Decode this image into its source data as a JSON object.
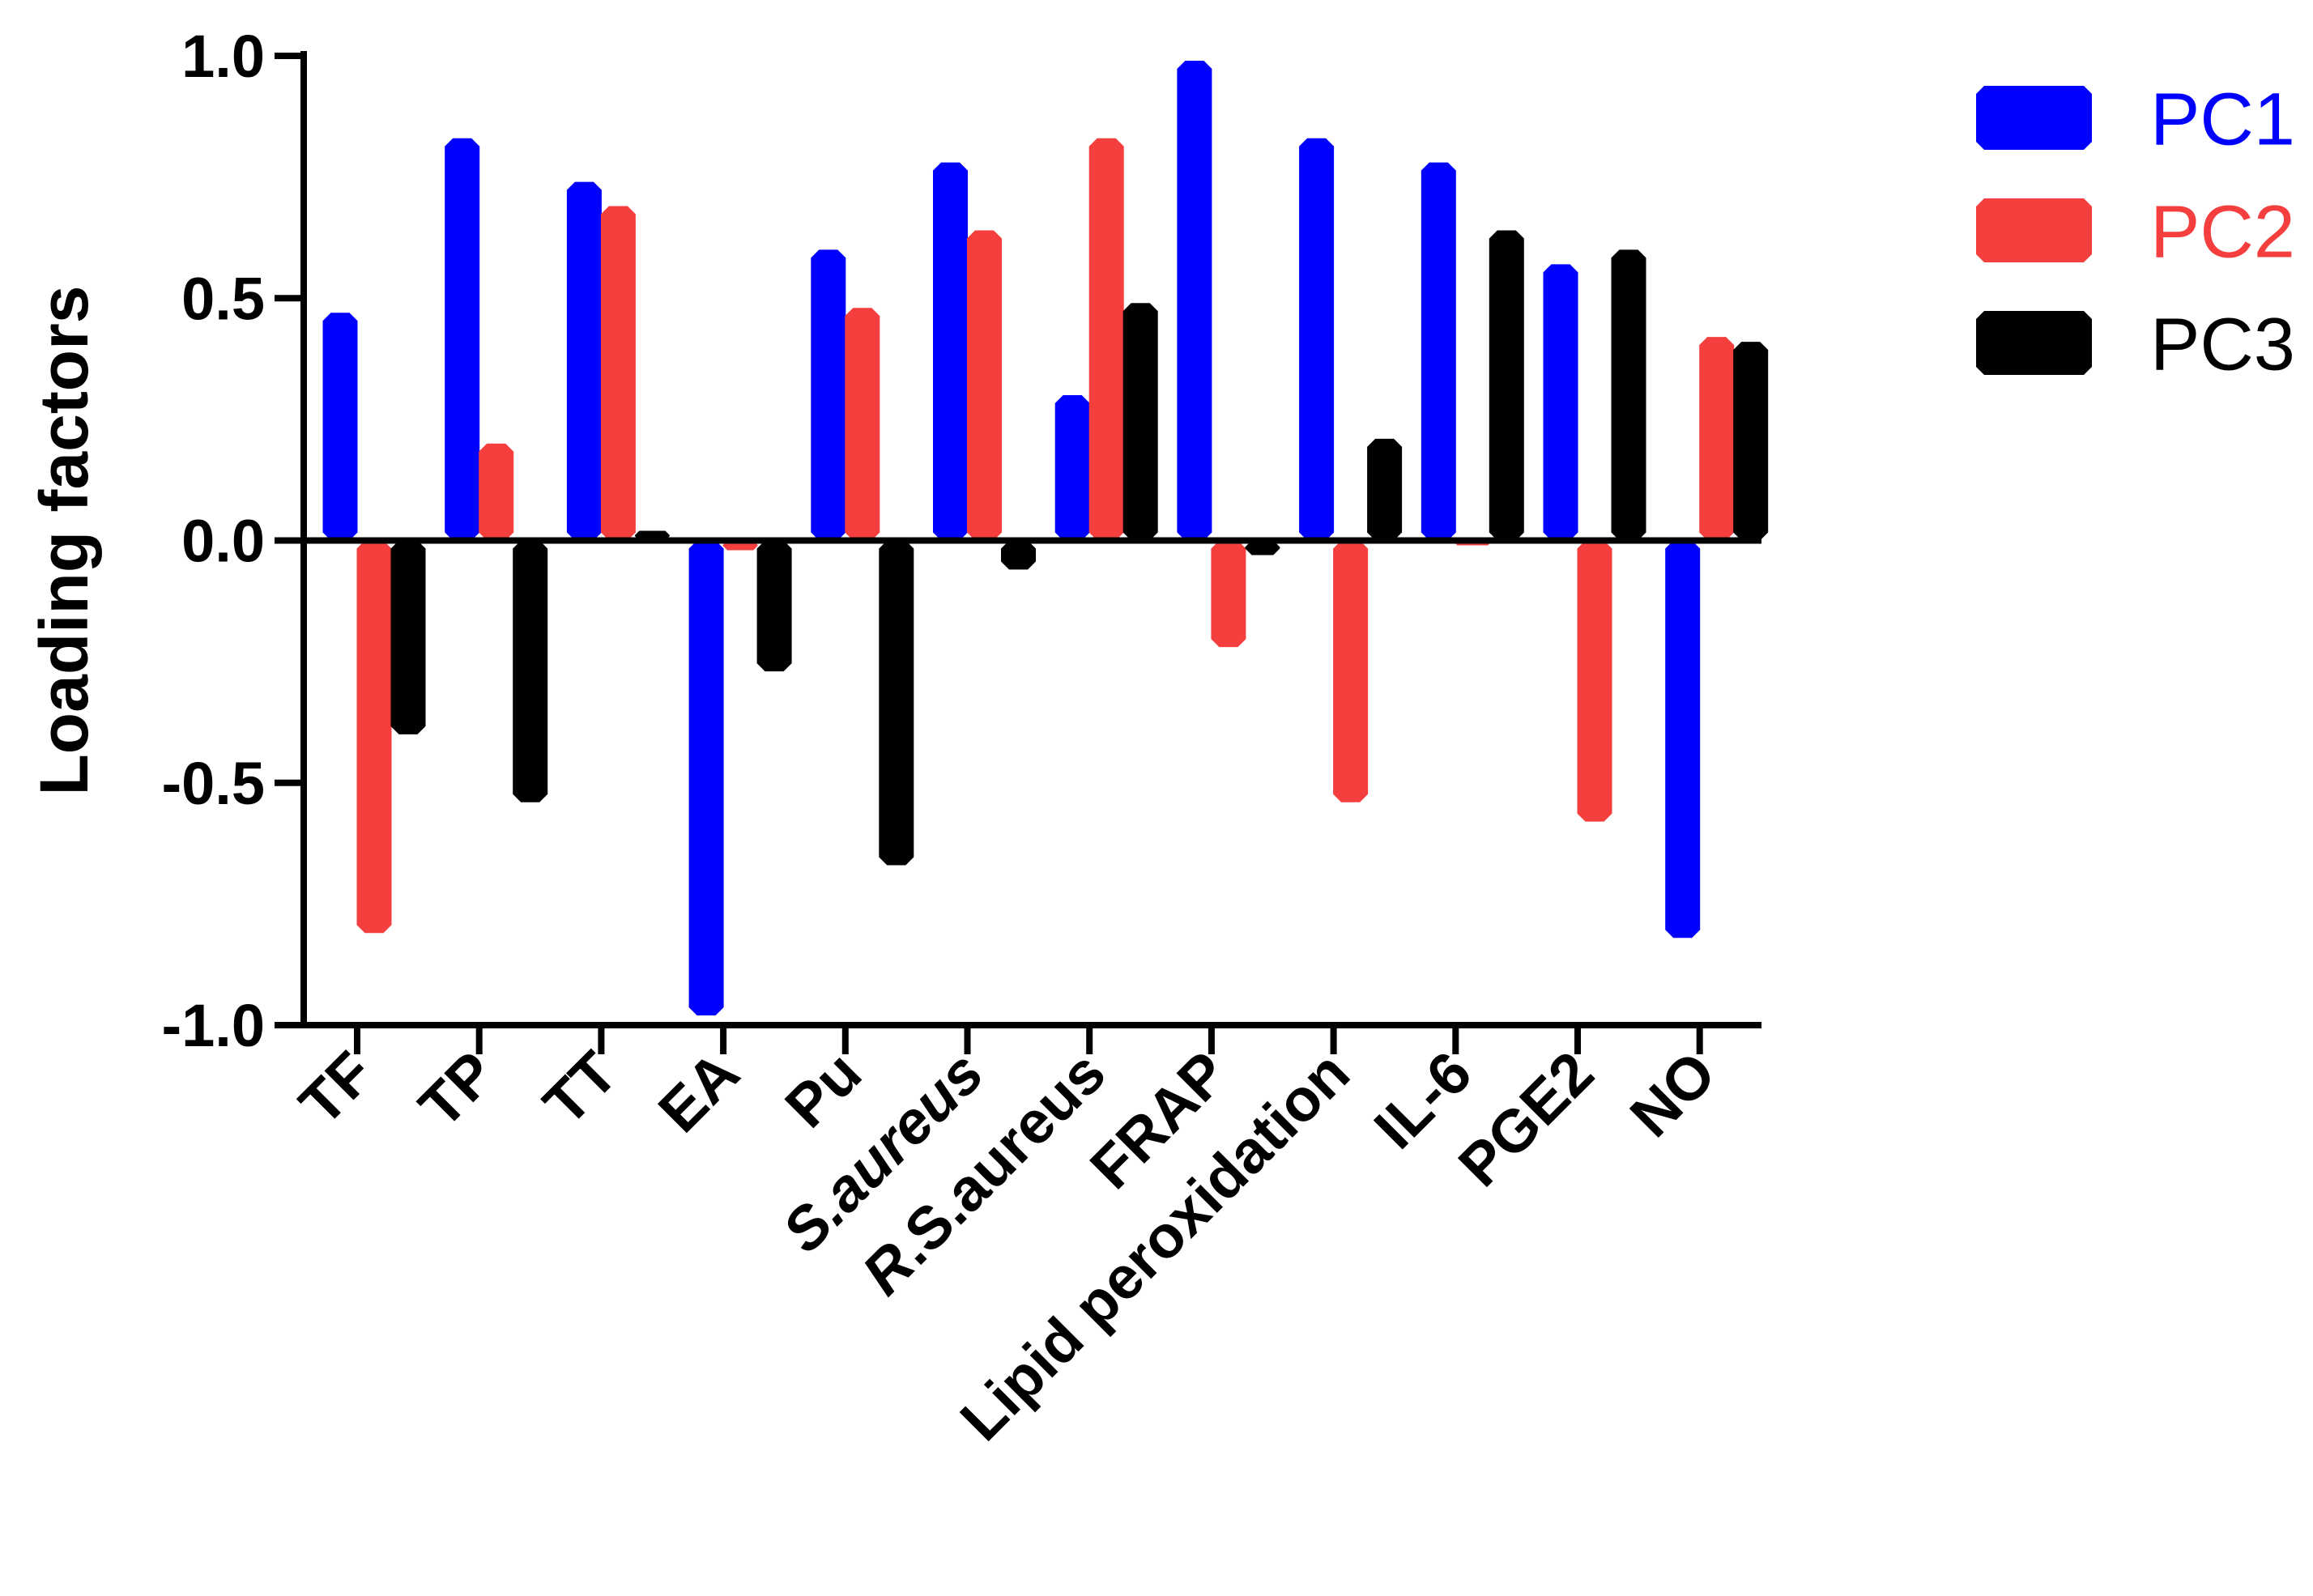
{
  "chart_data": {
    "type": "bar",
    "title": "",
    "xlabel": "",
    "ylabel": "Loading factors",
    "ylim": [
      -1.0,
      1.0
    ],
    "yticks": [
      "1.0",
      "0.5",
      "0.0",
      "-0.5",
      "-1.0"
    ],
    "ytick_values": [
      1.0,
      0.5,
      0.0,
      -0.5,
      -1.0
    ],
    "grid": false,
    "legend": "right",
    "categories": [
      {
        "label": "TF",
        "italic_prefix": "",
        "rest": "TF"
      },
      {
        "label": "TP",
        "italic_prefix": "",
        "rest": "TP"
      },
      {
        "label": "TT",
        "italic_prefix": "",
        "rest": "TT"
      },
      {
        "label": "EA",
        "italic_prefix": "",
        "rest": "EA"
      },
      {
        "label": "Pu",
        "italic_prefix": "",
        "rest": "Pu"
      },
      {
        "label": "S.aureus",
        "italic_prefix": "S.aureus",
        "rest": ""
      },
      {
        "label": "R.S.aureus",
        "italic_prefix": "R",
        "rest": ".S.aureus"
      },
      {
        "label": "FRAP",
        "italic_prefix": "",
        "rest": "FRAP"
      },
      {
        "label": "Lipid peroxidation",
        "italic_prefix": "",
        "rest": "Lipid peroxidation"
      },
      {
        "label": "IL-6",
        "italic_prefix": "",
        "rest": "IL-6"
      },
      {
        "label": "PGE2",
        "italic_prefix": "",
        "rest": "PGE2"
      },
      {
        "label": "NO",
        "italic_prefix": "",
        "rest": "NO"
      }
    ],
    "series": [
      {
        "name": "PC1",
        "color": "#0000ff",
        "values": [
          0.47,
          0.83,
          0.74,
          -0.98,
          0.6,
          0.78,
          0.3,
          0.99,
          0.83,
          0.78,
          0.57,
          -0.82
        ]
      },
      {
        "name": "PC2",
        "color": "#f53f3f",
        "values": [
          -0.81,
          0.2,
          0.69,
          -0.02,
          0.48,
          0.64,
          0.83,
          -0.22,
          -0.54,
          -0.01,
          -0.58,
          0.42
        ]
      },
      {
        "name": "PC3",
        "color": "#000000",
        "values": [
          -0.4,
          -0.54,
          0.02,
          -0.27,
          -0.67,
          -0.06,
          0.49,
          -0.03,
          0.21,
          0.64,
          0.6,
          0.41
        ]
      }
    ]
  }
}
